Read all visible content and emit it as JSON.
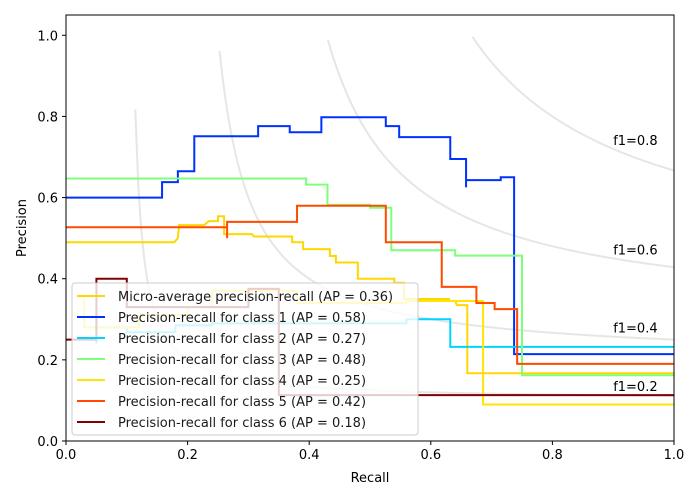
{
  "chart_data": {
    "type": "line",
    "title": "",
    "xlabel": "Recall",
    "ylabel": "Precision",
    "xlim": [
      0.0,
      1.0
    ],
    "ylim": [
      0.0,
      1.05
    ],
    "xticks": [
      "0.0",
      "0.2",
      "0.4",
      "0.6",
      "0.8",
      "1.0"
    ],
    "yticks": [
      "0.0",
      "0.2",
      "0.4",
      "0.6",
      "0.8",
      "1.0"
    ],
    "xtick_values": [
      0,
      0.2,
      0.4,
      0.6,
      0.8,
      1.0
    ],
    "ytick_values": [
      0,
      0.2,
      0.4,
      0.6,
      0.8,
      1.0
    ],
    "grid": false,
    "legend_position": "lower-left",
    "iso_f1_curves": [
      {
        "f1": 0.2,
        "label": "f1=0.2"
      },
      {
        "f1": 0.4,
        "label": "f1=0.4"
      },
      {
        "f1": 0.6,
        "label": "f1=0.6"
      },
      {
        "f1": 0.8,
        "label": "f1=0.8"
      }
    ],
    "series": [
      {
        "name": "Micro-average precision-recall (AP = 0.36)",
        "color": "#ffd700",
        "step": "post",
        "points": [
          [
            0.0,
            0.49
          ],
          [
            0.178,
            0.49
          ],
          [
            0.184,
            0.5
          ],
          [
            0.186,
            0.532
          ],
          [
            0.227,
            0.532
          ],
          [
            0.235,
            0.542
          ],
          [
            0.25,
            0.542
          ],
          [
            0.25,
            0.554
          ],
          [
            0.26,
            0.554
          ],
          [
            0.26,
            0.51
          ],
          [
            0.306,
            0.51
          ],
          [
            0.309,
            0.504
          ],
          [
            0.372,
            0.504
          ],
          [
            0.372,
            0.49
          ],
          [
            0.39,
            0.49
          ],
          [
            0.39,
            0.473
          ],
          [
            0.434,
            0.473
          ],
          [
            0.434,
            0.456
          ],
          [
            0.444,
            0.456
          ],
          [
            0.444,
            0.44
          ],
          [
            0.48,
            0.44
          ],
          [
            0.48,
            0.4
          ],
          [
            0.54,
            0.4
          ],
          [
            0.54,
            0.39
          ],
          [
            0.556,
            0.39
          ],
          [
            0.556,
            0.35
          ],
          [
            0.63,
            0.35
          ],
          [
            0.63,
            0.345
          ],
          [
            0.64,
            0.345
          ],
          [
            0.643,
            0.335
          ],
          [
            0.66,
            0.335
          ],
          [
            0.66,
            0.167
          ],
          [
            0.684,
            0.167
          ],
          [
            0.684,
            0.167
          ],
          [
            1.0,
            0.167
          ]
        ]
      },
      {
        "name": "Precision-recall for class 1 (AP = 0.58)",
        "color": "#0032ff",
        "step": "post",
        "points": [
          [
            0.0,
            0.6
          ],
          [
            0.158,
            0.6
          ],
          [
            0.158,
            0.638
          ],
          [
            0.184,
            0.638
          ],
          [
            0.184,
            0.665
          ],
          [
            0.211,
            0.665
          ],
          [
            0.211,
            0.751
          ],
          [
            0.316,
            0.751
          ],
          [
            0.316,
            0.776
          ],
          [
            0.368,
            0.776
          ],
          [
            0.368,
            0.761
          ],
          [
            0.42,
            0.761
          ],
          [
            0.42,
            0.798
          ],
          [
            0.526,
            0.798
          ],
          [
            0.526,
            0.776
          ],
          [
            0.548,
            0.776
          ],
          [
            0.548,
            0.749
          ],
          [
            0.632,
            0.749
          ],
          [
            0.632,
            0.695
          ],
          [
            0.658,
            0.695
          ],
          [
            0.658,
            0.625
          ],
          [
            0.658,
            0.643
          ],
          [
            0.715,
            0.643
          ],
          [
            0.715,
            0.65
          ],
          [
            0.737,
            0.65
          ],
          [
            0.737,
            0.214
          ],
          [
            1.0,
            0.214
          ]
        ]
      },
      {
        "name": "Precision-recall for class 2 (AP = 0.27)",
        "color": "#00d4ff",
        "step": "post",
        "points": [
          [
            0.05,
            0.24
          ],
          [
            0.05,
            0.28
          ],
          [
            0.1,
            0.28
          ],
          [
            0.1,
            0.268
          ],
          [
            0.18,
            0.268
          ],
          [
            0.18,
            0.285
          ],
          [
            0.24,
            0.285
          ],
          [
            0.24,
            0.29
          ],
          [
            0.56,
            0.29
          ],
          [
            0.56,
            0.3
          ],
          [
            0.632,
            0.3
          ],
          [
            0.632,
            0.232
          ],
          [
            1.0,
            0.232
          ]
        ]
      },
      {
        "name": "Precision-recall for class 3 (AP = 0.48)",
        "color": "#7dff7a",
        "step": "post",
        "points": [
          [
            0.0,
            0.647
          ],
          [
            0.395,
            0.647
          ],
          [
            0.395,
            0.632
          ],
          [
            0.43,
            0.632
          ],
          [
            0.43,
            0.582
          ],
          [
            0.5,
            0.582
          ],
          [
            0.5,
            0.575
          ],
          [
            0.535,
            0.575
          ],
          [
            0.535,
            0.47
          ],
          [
            0.64,
            0.47
          ],
          [
            0.64,
            0.457
          ],
          [
            0.75,
            0.457
          ],
          [
            0.75,
            0.162
          ],
          [
            1.0,
            0.162
          ]
        ]
      },
      {
        "name": "Precision-recall for class 4 (AP = 0.25)",
        "color": "#ffe600",
        "step": "post",
        "points": [
          [
            0.03,
            0.35
          ],
          [
            0.03,
            0.28
          ],
          [
            0.08,
            0.28
          ],
          [
            0.08,
            0.28
          ],
          [
            0.12,
            0.28
          ],
          [
            0.12,
            0.31
          ],
          [
            0.2,
            0.31
          ],
          [
            0.2,
            0.33
          ],
          [
            0.24,
            0.33
          ],
          [
            0.24,
            0.37
          ],
          [
            0.38,
            0.37
          ],
          [
            0.38,
            0.34
          ],
          [
            0.56,
            0.34
          ],
          [
            0.56,
            0.345
          ],
          [
            0.68,
            0.345
          ],
          [
            0.686,
            0.345
          ],
          [
            0.686,
            0.09
          ],
          [
            1.0,
            0.09
          ]
        ]
      },
      {
        "name": "Precision-recall for class 5 (AP = 0.42)",
        "color": "#ff4a00",
        "step": "post",
        "points": [
          [
            0.0,
            0.527
          ],
          [
            0.265,
            0.527
          ],
          [
            0.265,
            0.5
          ],
          [
            0.265,
            0.54
          ],
          [
            0.38,
            0.54
          ],
          [
            0.38,
            0.58
          ],
          [
            0.526,
            0.58
          ],
          [
            0.526,
            0.49
          ],
          [
            0.618,
            0.49
          ],
          [
            0.618,
            0.38
          ],
          [
            0.675,
            0.38
          ],
          [
            0.675,
            0.34
          ],
          [
            0.705,
            0.34
          ],
          [
            0.705,
            0.325
          ],
          [
            0.705,
            0.325
          ],
          [
            0.742,
            0.325
          ],
          [
            0.742,
            0.19
          ],
          [
            1.0,
            0.19
          ]
        ]
      },
      {
        "name": "Precision-recall for class 6 (AP = 0.18)",
        "color": "#800000",
        "step": "post",
        "points": [
          [
            0.0,
            0.25
          ],
          [
            0.05,
            0.25
          ],
          [
            0.05,
            0.4
          ],
          [
            0.1,
            0.4
          ],
          [
            0.1,
            0.33
          ],
          [
            0.18,
            0.33
          ],
          [
            0.3,
            0.33
          ],
          [
            0.3,
            0.375
          ],
          [
            0.35,
            0.375
          ],
          [
            0.35,
            0.113
          ],
          [
            1.0,
            0.113
          ]
        ]
      }
    ]
  }
}
